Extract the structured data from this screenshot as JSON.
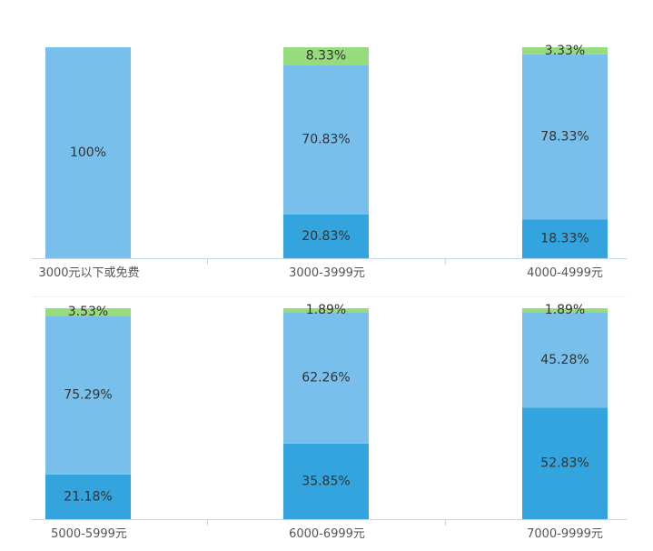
{
  "chart_data": {
    "type": "bar",
    "stacked": true,
    "percent_stacked": true,
    "panels": [
      {
        "categories": [
          "3000元以下或免费",
          "3000-3999元",
          "4000-4999元"
        ],
        "stacks": [
          [
            {
              "value": 100,
              "label": "100%",
              "color": "#78bfeb"
            }
          ],
          [
            {
              "value": 20.83,
              "label": "20.83%",
              "color": "#33a4dd"
            },
            {
              "value": 70.83,
              "label": "70.83%",
              "color": "#78bfeb"
            },
            {
              "value": 8.33,
              "label": "8.33%",
              "color": "#96dc7c"
            }
          ],
          [
            {
              "value": 18.33,
              "label": "18.33%",
              "color": "#33a4dd"
            },
            {
              "value": 78.33,
              "label": "78.33%",
              "color": "#78bfeb"
            },
            {
              "value": 3.33,
              "label": "3.33%",
              "color": "#96dc7c"
            }
          ]
        ]
      },
      {
        "categories": [
          "5000-5999元",
          "6000-6999元",
          "7000-9999元"
        ],
        "stacks": [
          [
            {
              "value": 21.18,
              "label": "21.18%",
              "color": "#33a4dd"
            },
            {
              "value": 75.29,
              "label": "75.29%",
              "color": "#78bfeb"
            },
            {
              "value": 3.53,
              "label": "3.53%",
              "color": "#96dc7c"
            }
          ],
          [
            {
              "value": 35.85,
              "label": "35.85%",
              "color": "#33a4dd"
            },
            {
              "value": 62.26,
              "label": "62.26%",
              "color": "#78bfeb"
            },
            {
              "value": 1.89,
              "label": "1.89%",
              "color": "#96dc7c"
            }
          ],
          [
            {
              "value": 52.83,
              "label": "52.83%",
              "color": "#33a4dd"
            },
            {
              "value": 45.28,
              "label": "45.28%",
              "color": "#78bfeb"
            },
            {
              "value": 1.89,
              "label": "1.89%",
              "color": "#96dc7c"
            }
          ]
        ]
      }
    ],
    "ylim": [
      0,
      100
    ],
    "grid": false,
    "colors": {
      "axis": "#c8d7e4",
      "divider": "#f0f2f5"
    }
  }
}
